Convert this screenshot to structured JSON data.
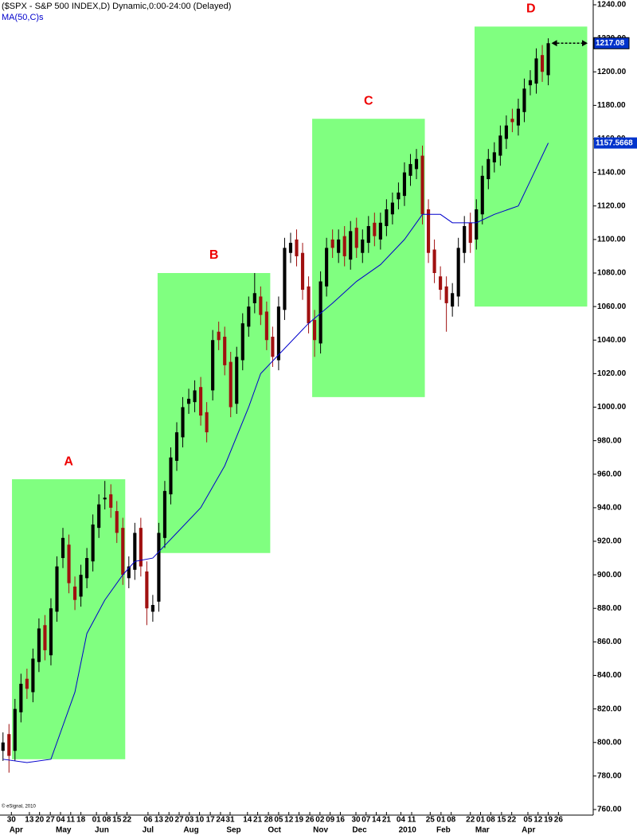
{
  "chart_data": {
    "type": "candlestick",
    "title": "($SPX - S&P 500 INDEX,D) Dynamic,0:00-24:00 (Delayed)",
    "copyright": "© eSignal, 2010",
    "up_color": "#000000",
    "down_color": "#a01010",
    "open": [
      795,
      805,
      795,
      818,
      838,
      830,
      848,
      870,
      852,
      878,
      910,
      918,
      893,
      887,
      898,
      908,
      928,
      945,
      948,
      938,
      928,
      898,
      903,
      928,
      902,
      878,
      884,
      922,
      948,
      968,
      982,
      1002,
      1003,
      1012,
      997,
      1010,
      1045,
      1042,
      1027,
      1002,
      1028,
      1048,
      1062,
      1066,
      1057,
      1042,
      1028,
      1058,
      1092,
      1100,
      1092,
      1072,
      1052,
      1038,
      1072,
      1100,
      1092,
      1102,
      1088,
      1107,
      1092,
      1098,
      1110,
      1100,
      1108,
      1115,
      1124,
      1126,
      1138,
      1142,
      1150,
      1118,
      1094,
      1078,
      1072,
      1060,
      1066,
      1092,
      1110,
      1100,
      1115,
      1136,
      1146,
      1150,
      1160,
      1172,
      1168,
      1176,
      1192,
      1193,
      1210,
      1198
    ],
    "high": [
      806,
      811,
      826,
      841,
      844,
      856,
      874,
      876,
      886,
      911,
      928,
      924,
      899,
      906,
      916,
      936,
      948,
      956,
      954,
      944,
      934,
      911,
      931,
      934,
      908,
      888,
      931,
      956,
      976,
      991,
      1006,
      1011,
      1016,
      1018,
      1003,
      1046,
      1051,
      1048,
      1033,
      1036,
      1056,
      1066,
      1080,
      1072,
      1063,
      1048,
      1066,
      1101,
      1104,
      1106,
      1098,
      1078,
      1058,
      1081,
      1101,
      1106,
      1106,
      1108,
      1111,
      1113,
      1106,
      1114,
      1116,
      1116,
      1124,
      1128,
      1134,
      1146,
      1151,
      1154,
      1156,
      1124,
      1100,
      1084,
      1078,
      1074,
      1101,
      1114,
      1116,
      1124,
      1144,
      1154,
      1158,
      1168,
      1174,
      1178,
      1184,
      1196,
      1201,
      1214,
      1216,
      1220
    ],
    "low": [
      789,
      782,
      789,
      812,
      826,
      824,
      842,
      849,
      846,
      872,
      904,
      889,
      879,
      881,
      892,
      902,
      922,
      939,
      934,
      919,
      894,
      892,
      897,
      899,
      870,
      872,
      878,
      916,
      942,
      962,
      976,
      996,
      997,
      989,
      979,
      1004,
      1034,
      1019,
      994,
      996,
      1022,
      1042,
      1056,
      1049,
      1034,
      1024,
      1022,
      1052,
      1086,
      1084,
      1064,
      1044,
      1030,
      1032,
      1066,
      1089,
      1086,
      1084,
      1082,
      1089,
      1086,
      1092,
      1096,
      1094,
      1102,
      1109,
      1118,
      1120,
      1132,
      1136,
      1109,
      1086,
      1074,
      1064,
      1045,
      1054,
      1060,
      1086,
      1092,
      1094,
      1109,
      1130,
      1140,
      1144,
      1154,
      1164,
      1162,
      1170,
      1186,
      1187,
      1194,
      1192
    ],
    "close": [
      800,
      792,
      820,
      835,
      832,
      850,
      868,
      855,
      880,
      905,
      922,
      895,
      885,
      900,
      910,
      930,
      942,
      946,
      940,
      925,
      900,
      905,
      925,
      905,
      880,
      882,
      925,
      950,
      970,
      985,
      1000,
      1005,
      1010,
      995,
      985,
      1040,
      1040,
      1025,
      1000,
      1030,
      1050,
      1060,
      1068,
      1055,
      1040,
      1030,
      1060,
      1095,
      1098,
      1090,
      1070,
      1050,
      1040,
      1075,
      1095,
      1095,
      1100,
      1090,
      1105,
      1095,
      1100,
      1108,
      1102,
      1110,
      1118,
      1122,
      1128,
      1140,
      1145,
      1148,
      1115,
      1092,
      1080,
      1070,
      1062,
      1068,
      1095,
      1108,
      1098,
      1118,
      1138,
      1148,
      1152,
      1162,
      1168,
      1170,
      1178,
      1190,
      1195,
      1208,
      1200,
      1217.08
    ],
    "ma": {
      "name": "MA(50,C)s",
      "color": "#0000cc",
      "x": [
        0,
        4,
        8,
        9,
        12,
        14,
        17,
        20,
        22,
        25,
        29,
        33,
        37,
        41,
        43,
        47,
        51,
        55,
        59,
        63,
        67,
        70,
        73,
        75,
        79,
        82,
        86,
        88,
        91
      ],
      "values": [
        790,
        788,
        790,
        800,
        830,
        865,
        885,
        900,
        908,
        910,
        925,
        940,
        965,
        1000,
        1020,
        1035,
        1050,
        1062,
        1075,
        1085,
        1100,
        1115,
        1115,
        1110,
        1110,
        1115,
        1120,
        1135,
        1157.5668
      ]
    },
    "region_color": "#80ff80",
    "label_color": "#ee0000",
    "regions": [
      {
        "label": "A",
        "x": [
          1.5,
          20.4
        ],
        "y": [
          790,
          957
        ]
      },
      {
        "label": "B",
        "x": [
          25.8,
          44.6
        ],
        "y": [
          913,
          1080
        ]
      },
      {
        "label": "C",
        "x": [
          51.6,
          70.4
        ],
        "y": [
          1006,
          1172
        ]
      },
      {
        "label": "D",
        "x": [
          78.7,
          97.5
        ],
        "y": [
          1060,
          1227
        ]
      }
    ],
    "xlim": [
      -0.5,
      98.5
    ],
    "ylim": [
      760,
      1240
    ],
    "yticks": [
      {
        "value": 760,
        "label": "760.00"
      },
      {
        "value": 780,
        "label": "780.00"
      },
      {
        "value": 800,
        "label": "800.00"
      },
      {
        "value": 820,
        "label": "820.00"
      },
      {
        "value": 840,
        "label": "840.00"
      },
      {
        "value": 860,
        "label": "860.00"
      },
      {
        "value": 880,
        "label": "880.00"
      },
      {
        "value": 900,
        "label": "900.00"
      },
      {
        "value": 920,
        "label": "920.00"
      },
      {
        "value": 940,
        "label": "940.00"
      },
      {
        "value": 960,
        "label": "960.00"
      },
      {
        "value": 980,
        "label": "980.00"
      },
      {
        "value": 1000,
        "label": "1000.00"
      },
      {
        "value": 1020,
        "label": "1020.00"
      },
      {
        "value": 1040,
        "label": "1040.00"
      },
      {
        "value": 1060,
        "label": "1060.00"
      },
      {
        "value": 1080,
        "label": "1080.00"
      },
      {
        "value": 1100,
        "label": "1100.00"
      },
      {
        "value": 1120,
        "label": "1120.00"
      },
      {
        "value": 1140,
        "label": "1140.00"
      },
      {
        "value": 1160,
        "label": "1160.00"
      },
      {
        "value": 1180,
        "label": "1180.00"
      },
      {
        "value": 1200,
        "label": "1200.00"
      },
      {
        "value": 1220,
        "label": "1220.00"
      },
      {
        "value": 1240,
        "label": "1240.00"
      }
    ],
    "xticks": [
      {
        "value": 1.4,
        "label": "30"
      },
      {
        "value": 4.4,
        "label": "13"
      },
      {
        "value": 6.1,
        "label": "20"
      },
      {
        "value": 7.9,
        "label": "27"
      },
      {
        "value": 9.6,
        "label": "04"
      },
      {
        "value": 11.3,
        "label": "11"
      },
      {
        "value": 13.0,
        "label": "18"
      },
      {
        "value": 15.6,
        "label": "01"
      },
      {
        "value": 17.3,
        "label": "08"
      },
      {
        "value": 19.0,
        "label": "15"
      },
      {
        "value": 20.7,
        "label": "22"
      },
      {
        "value": 24.2,
        "label": "06"
      },
      {
        "value": 26.0,
        "label": "13"
      },
      {
        "value": 27.7,
        "label": "20"
      },
      {
        "value": 29.4,
        "label": "27"
      },
      {
        "value": 31.1,
        "label": "03"
      },
      {
        "value": 32.8,
        "label": "10"
      },
      {
        "value": 34.6,
        "label": "17"
      },
      {
        "value": 36.3,
        "label": "24"
      },
      {
        "value": 37.9,
        "label": "31"
      },
      {
        "value": 40.8,
        "label": "14"
      },
      {
        "value": 42.5,
        "label": "21"
      },
      {
        "value": 44.3,
        "label": "28"
      },
      {
        "value": 46.0,
        "label": "05"
      },
      {
        "value": 47.7,
        "label": "12"
      },
      {
        "value": 49.4,
        "label": "19"
      },
      {
        "value": 51.2,
        "label": "26"
      },
      {
        "value": 52.9,
        "label": "02"
      },
      {
        "value": 54.6,
        "label": "09"
      },
      {
        "value": 56.3,
        "label": "16"
      },
      {
        "value": 58.9,
        "label": "30"
      },
      {
        "value": 60.6,
        "label": "07"
      },
      {
        "value": 62.3,
        "label": "14"
      },
      {
        "value": 64.0,
        "label": "21"
      },
      {
        "value": 66.4,
        "label": "04"
      },
      {
        "value": 68.2,
        "label": "11"
      },
      {
        "value": 71.3,
        "label": "25"
      },
      {
        "value": 73.1,
        "label": "01"
      },
      {
        "value": 74.8,
        "label": "08"
      },
      {
        "value": 78.0,
        "label": "22"
      },
      {
        "value": 79.7,
        "label": "01"
      },
      {
        "value": 81.4,
        "label": "08"
      },
      {
        "value": 83.2,
        "label": "15"
      },
      {
        "value": 84.9,
        "label": "22"
      },
      {
        "value": 87.6,
        "label": "05"
      },
      {
        "value": 89.3,
        "label": "12"
      },
      {
        "value": 91.0,
        "label": "19"
      },
      {
        "value": 92.7,
        "label": "26"
      }
    ],
    "month_ticks": [
      {
        "value": 2.2,
        "label": "Apr"
      },
      {
        "value": 10.1,
        "label": "May"
      },
      {
        "value": 16.5,
        "label": "Jun"
      },
      {
        "value": 24.2,
        "label": "Jul"
      },
      {
        "value": 31.4,
        "label": "Aug"
      },
      {
        "value": 38.5,
        "label": "Sep"
      },
      {
        "value": 45.3,
        "label": "Oct"
      },
      {
        "value": 53.0,
        "label": "Nov"
      },
      {
        "value": 59.5,
        "label": "Dec"
      },
      {
        "value": 67.5,
        "label": "2010"
      },
      {
        "value": 73.5,
        "label": "Feb"
      },
      {
        "value": 80.0,
        "label": "Mar"
      },
      {
        "value": 87.7,
        "label": "Apr"
      }
    ]
  }
}
